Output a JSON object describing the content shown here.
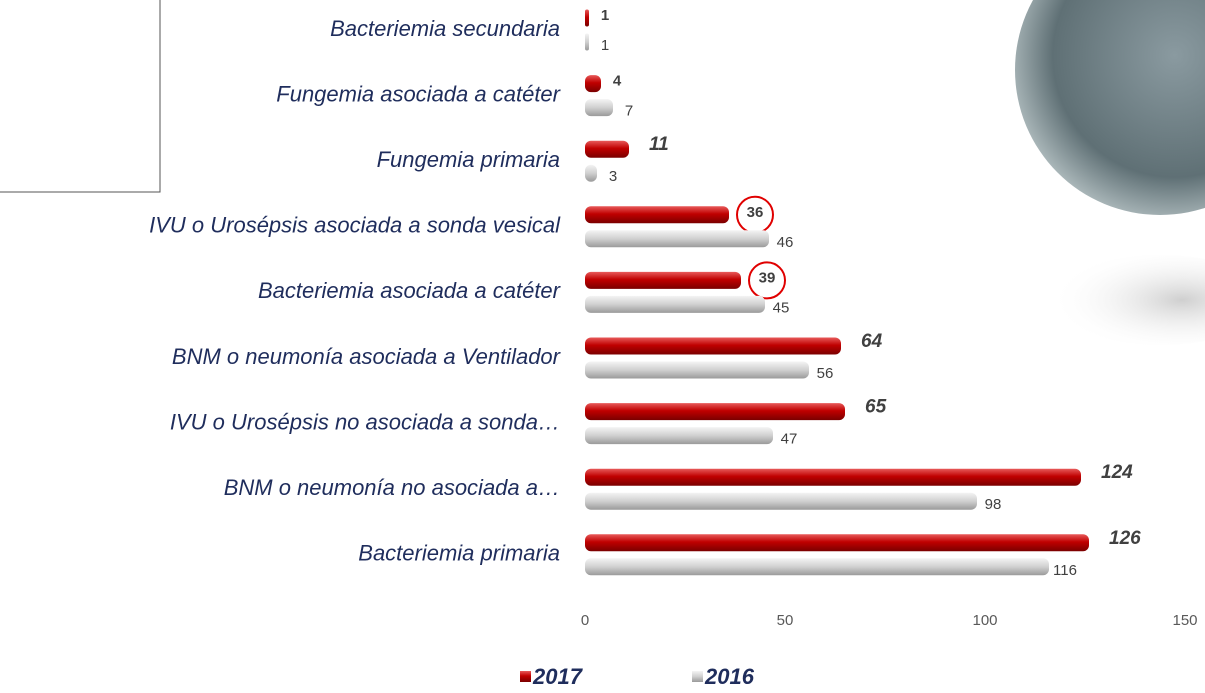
{
  "chart_data": {
    "type": "bar",
    "orientation": "horizontal",
    "categories": [
      "Bacteriemia secundaria",
      "Fungemia asociada a catéter",
      "Fungemia primaria",
      "IVU o Urosépsis asociada a sonda vesical",
      "Bacteriemia asociada a catéter",
      "BNM o neumonía asociada a Ventilador",
      "IVU o Urosépsis no asociada a sonda…",
      "BNM o neumonía no asociada a…",
      "Bacteriemia primaria"
    ],
    "series": [
      {
        "name": "2017",
        "color": "#c00000",
        "values": [
          1,
          4,
          11,
          36,
          39,
          64,
          65,
          124,
          126
        ]
      },
      {
        "name": "2016",
        "color": "#bfbfbf",
        "values": [
          1,
          7,
          3,
          46,
          45,
          56,
          47,
          98,
          116
        ]
      }
    ],
    "xlim": [
      0,
      150
    ],
    "xticks": [
      0,
      50,
      100,
      150
    ],
    "legend": "bottom"
  }
}
